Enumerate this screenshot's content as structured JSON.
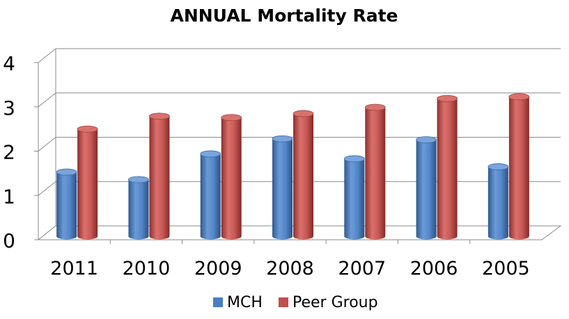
{
  "chart_data": {
    "type": "bar",
    "title": "ANNUAL Mortality Rate",
    "categories": [
      "2011",
      "2010",
      "2009",
      "2008",
      "2007",
      "2006",
      "2005"
    ],
    "series": [
      {
        "name": "MCH",
        "color": "#4a7ec3",
        "values": [
          1.45,
          1.28,
          1.86,
          2.2,
          1.75,
          2.18,
          1.57
        ]
      },
      {
        "name": "Peer Group",
        "color": "#c0504d",
        "values": [
          2.42,
          2.71,
          2.68,
          2.77,
          2.91,
          3.11,
          3.15
        ]
      }
    ],
    "y_ticks": [
      "0",
      "1",
      "2",
      "3",
      "4"
    ],
    "ylim": [
      0,
      4
    ],
    "grid": true,
    "legend_position": "bottom",
    "xlabel": "",
    "ylabel": ""
  }
}
